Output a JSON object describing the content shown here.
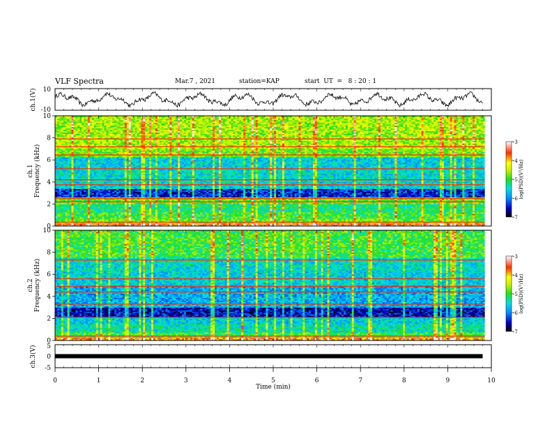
{
  "header": {
    "title": "VLF Spectra",
    "date": "Mar.7 , 2021",
    "station": "station=KAP",
    "start": "start  UT  =   8 : 20 : 1"
  },
  "chart_data": [
    {
      "type": "line",
      "id": "ch1_waveform",
      "ylabel": "ch.1(V)",
      "ylim": [
        -10,
        10
      ],
      "yticks": [
        "10",
        "-10"
      ],
      "xlim": [
        0,
        10
      ],
      "description_series": "noisy oscillating voltage trace between about -7 and +7 V"
    },
    {
      "type": "heatmap",
      "id": "ch1_spectrogram",
      "ylabel": "ch.1\nFrequency (kHz)",
      "ylabel_lines": [
        "ch.1",
        "Frequency (kHz)"
      ],
      "ylim": [
        0,
        10
      ],
      "yticks": [
        "0",
        "2",
        "4",
        "6",
        "8",
        "10"
      ],
      "xlim": [
        0,
        9.85
      ],
      "colorbar": {
        "label": "log(PSD)(V²/Hz)",
        "range": [
          -7,
          -3
        ],
        "ticks": [
          "-3",
          "-4",
          "-5",
          "-6",
          "-7"
        ]
      },
      "bands": [
        {
          "from": 0.0,
          "to": 0.25,
          "level": -3.6
        },
        {
          "from": 0.25,
          "to": 0.6,
          "level": -4.8
        },
        {
          "from": 0.6,
          "to": 1.3,
          "level": -5.0
        },
        {
          "from": 1.3,
          "to": 2.0,
          "level": -5.2
        },
        {
          "from": 2.0,
          "to": 2.6,
          "level": -4.9
        },
        {
          "from": 2.6,
          "to": 3.4,
          "level": -6.4
        },
        {
          "from": 3.4,
          "to": 4.0,
          "level": -5.6
        },
        {
          "from": 4.0,
          "to": 5.2,
          "level": -5.5
        },
        {
          "from": 5.2,
          "to": 6.2,
          "level": -5.6
        },
        {
          "from": 6.2,
          "to": 7.0,
          "level": -4.8
        },
        {
          "from": 7.0,
          "to": 10.0,
          "level": -4.6
        }
      ],
      "lines_khz": [
        0.35,
        2.2,
        2.5,
        3.75,
        4.2,
        5.2,
        6.45,
        7.2,
        7.9
      ]
    },
    {
      "type": "heatmap",
      "id": "ch2_spectrogram",
      "ylabel": "ch.2\nFrequency (kHz)",
      "ylabel_lines": [
        "ch.2",
        "Frequency (kHz)"
      ],
      "ylim": [
        0,
        10
      ],
      "yticks": [
        "0",
        "2",
        "4",
        "6",
        "8",
        "10"
      ],
      "xlim": [
        0,
        9.85
      ],
      "colorbar": {
        "label": "log(PSD)(V²/Hz)",
        "range": [
          -7,
          -3
        ],
        "ticks": [
          "-3",
          "-4",
          "-5",
          "-6",
          "-7"
        ]
      },
      "bands": [
        {
          "from": 0.0,
          "to": 0.25,
          "level": -3.8
        },
        {
          "from": 0.25,
          "to": 0.8,
          "level": -5.0
        },
        {
          "from": 0.8,
          "to": 1.5,
          "level": -5.4
        },
        {
          "from": 1.5,
          "to": 2.1,
          "level": -5.6
        },
        {
          "from": 2.1,
          "to": 3.0,
          "level": -6.5
        },
        {
          "from": 3.0,
          "to": 4.2,
          "level": -5.8
        },
        {
          "from": 4.2,
          "to": 5.0,
          "level": -5.8
        },
        {
          "from": 5.0,
          "to": 6.2,
          "level": -5.6
        },
        {
          "from": 6.2,
          "to": 7.5,
          "level": -5.5
        },
        {
          "from": 7.5,
          "to": 10.0,
          "level": -5.0
        }
      ],
      "lines_khz": [
        0.4,
        2.1,
        3.3,
        4.4,
        4.9,
        5.6,
        7.3
      ]
    },
    {
      "type": "line",
      "id": "ch3_waveform",
      "ylabel": "ch.3(V)",
      "ylim": [
        -5,
        5
      ],
      "yticks": [
        "5",
        "0",
        "-5"
      ],
      "xlabel": "Time  (min)",
      "xlim": [
        0,
        10
      ],
      "xticks": [
        "0",
        "1",
        "2",
        "3",
        "4",
        "5",
        "6",
        "7",
        "8",
        "9",
        "10"
      ],
      "level_v": 0
    }
  ]
}
